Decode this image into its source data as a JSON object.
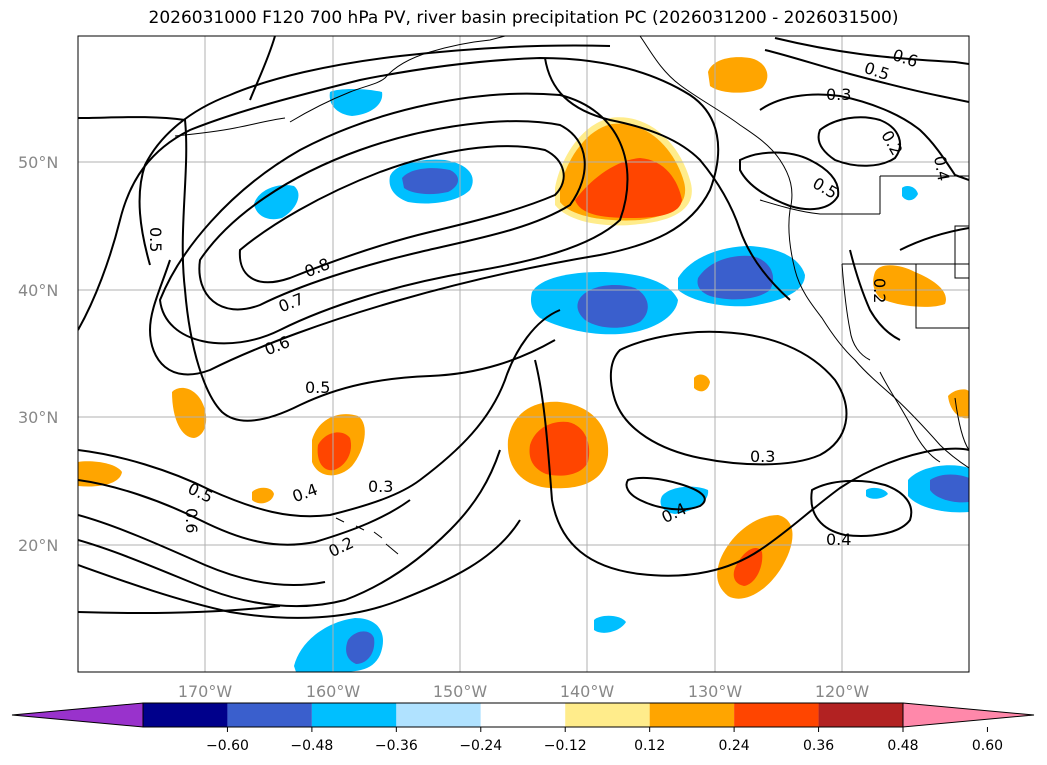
{
  "title": "2026031000 F120 700 hPa PV, river basin precipitation PC (2026031200 - 2026031500)",
  "latitude_labels": [
    "50°N",
    "40°N",
    "30°N",
    "20°N"
  ],
  "longitude_labels": [
    "170°W",
    "160°W",
    "150°W",
    "140°W",
    "130°W",
    "120°W"
  ],
  "colorbar": {
    "tick_labels": [
      "−0.60",
      "−0.48",
      "−0.36",
      "−0.24",
      "−0.12",
      "0.12",
      "0.24",
      "0.36",
      "0.48",
      "0.60"
    ],
    "colors": [
      "#9932cc",
      "#00008b",
      "#3a5fcd",
      "#00bfff",
      "#b0e2ff",
      "#ffffff",
      "#ffec8b",
      "#ffa500",
      "#ff4500",
      "#b22222",
      "#ff88aa"
    ]
  },
  "pv_contour_labels": [
    "0.8",
    "0.7",
    "0.6",
    "0.5",
    "0.5",
    "0.5",
    "0.6",
    "0.4",
    "0.3",
    "0.2",
    "0.4",
    "0.3",
    "0.4",
    "0.3",
    "0.2",
    "0.5",
    "0.6",
    "0.4",
    "0.2",
    "0.5"
  ]
}
